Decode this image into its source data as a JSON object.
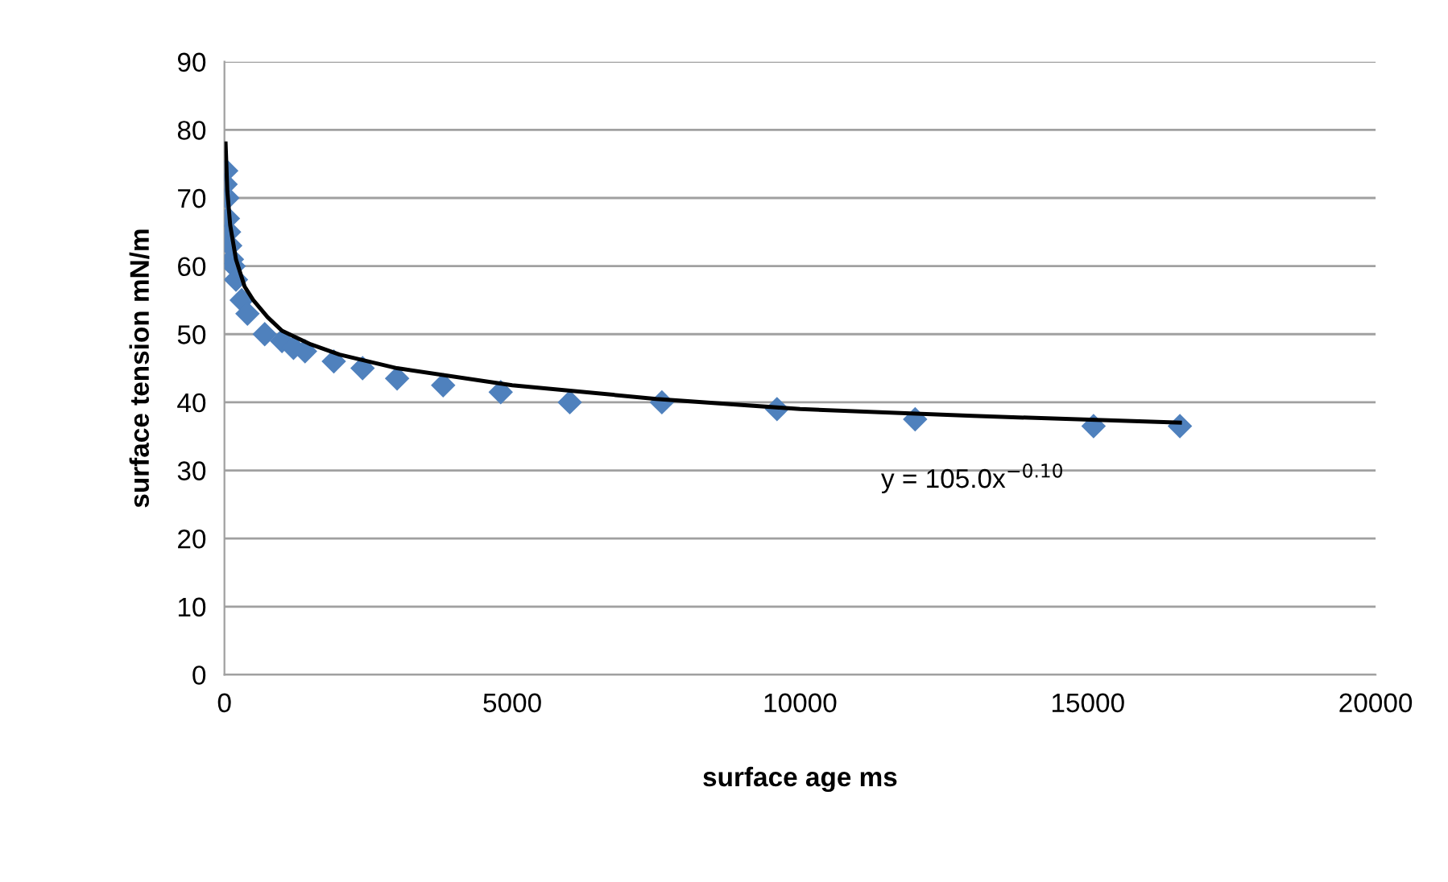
{
  "chart_data": {
    "type": "scatter",
    "xlabel": "surface age ms",
    "ylabel": "surface tension mN/m",
    "xlim": [
      0,
      20000
    ],
    "xticks": [
      0,
      5000,
      10000,
      15000,
      20000
    ],
    "ylim": [
      0,
      90
    ],
    "yticks": [
      0,
      10,
      20,
      30,
      40,
      50,
      60,
      70,
      80,
      90
    ],
    "grid": "y",
    "marker": "diamond",
    "series": [
      {
        "color": "#4f81bd",
        "x": [
          20,
          30,
          50,
          60,
          80,
          100,
          130,
          160,
          200,
          300,
          400,
          700,
          1000,
          1200,
          1400,
          1900,
          2400,
          3000,
          3800,
          4800,
          6000,
          7600,
          9600,
          12000,
          15100,
          16600
        ],
        "values": [
          72,
          74,
          70,
          67,
          65,
          63,
          61,
          60,
          58,
          55,
          53,
          50,
          49,
          48,
          47.5,
          46,
          45,
          43.5,
          42.5,
          41.5,
          40,
          40,
          39,
          37.5,
          36.5,
          36.5
        ]
      },
      {
        "type": "line",
        "color": "#000000",
        "marker": "none",
        "line_style": "solid",
        "x": [
          20,
          50,
          100,
          200,
          350,
          500,
          750,
          1000,
          1500,
          2000,
          3000,
          5000,
          7500,
          10000,
          13000,
          16600
        ],
        "values": [
          78,
          71,
          66,
          61,
          57,
          55,
          52.5,
          50.5,
          48.5,
          47,
          45,
          42.5,
          40.5,
          39,
          38,
          37
        ]
      }
    ],
    "annotations": [
      "y = 105.0x$^{−0.10}$"
    ]
  }
}
